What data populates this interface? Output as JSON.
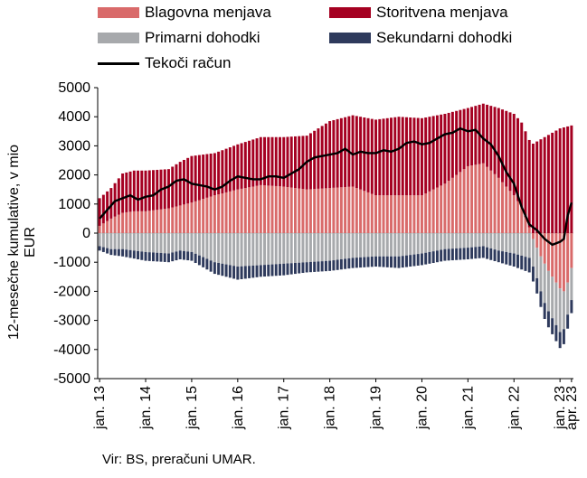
{
  "legend": {
    "goods": "Blagovna menjava",
    "services": "Storitvena menjava",
    "primary": "Primarni dohodki",
    "secondary": "Sekundarni dohodki",
    "current": "Tekoči račun"
  },
  "source": "Vir: BS, preračuni UMAR.",
  "colors": {
    "goods": "#d96a6a",
    "services": "#a50021",
    "primary": "#a7a9ac",
    "secondary": "#2e3a5c",
    "current": "#000000",
    "zero_line": "#c7c7c7"
  },
  "chart_data": {
    "type": "bar",
    "stacked": true,
    "ylabel": "12-mesečne kumulative, v mio EUR",
    "ylim": [
      -5000,
      5000
    ],
    "yticks": [
      5000,
      4000,
      3000,
      2000,
      1000,
      0,
      -1000,
      -2000,
      -3000,
      -4000,
      -5000
    ],
    "x_start": "jan. 13",
    "x_end": "apr. 23",
    "xtick_labels": [
      "jan. 13",
      "jan. 14",
      "jan. 15",
      "jan. 16",
      "jan. 17",
      "jan. 18",
      "jan. 19",
      "jan. 20",
      "jan. 21",
      "jan. 22",
      "jan. 23",
      "apr. 23"
    ],
    "xtick_index": [
      0,
      12,
      24,
      36,
      48,
      60,
      72,
      84,
      96,
      108,
      120,
      123
    ],
    "series_order": [
      "goods",
      "services",
      "primary",
      "secondary"
    ],
    "anchors": {
      "goods": [
        [
          0,
          250
        ],
        [
          3,
          500
        ],
        [
          6,
          700
        ],
        [
          9,
          750
        ],
        [
          12,
          750
        ],
        [
          18,
          850
        ],
        [
          21,
          950
        ],
        [
          24,
          1050
        ],
        [
          30,
          1300
        ],
        [
          36,
          1500
        ],
        [
          42,
          1650
        ],
        [
          48,
          1600
        ],
        [
          54,
          1500
        ],
        [
          60,
          1550
        ],
        [
          66,
          1600
        ],
        [
          72,
          1300
        ],
        [
          78,
          1300
        ],
        [
          84,
          1300
        ],
        [
          90,
          1700
        ],
        [
          96,
          2300
        ],
        [
          100,
          2400
        ],
        [
          104,
          1900
        ],
        [
          108,
          1300
        ],
        [
          110,
          900
        ],
        [
          112,
          200
        ],
        [
          113,
          -200
        ],
        [
          115,
          -800
        ],
        [
          117,
          -1300
        ],
        [
          119,
          -1700
        ],
        [
          120,
          -1900
        ],
        [
          121,
          -2000
        ],
        [
          122,
          -1700
        ],
        [
          123,
          -1200
        ]
      ],
      "services": [
        [
          0,
          950
        ],
        [
          3,
          1050
        ],
        [
          6,
          1350
        ],
        [
          9,
          1400
        ],
        [
          12,
          1400
        ],
        [
          18,
          1350
        ],
        [
          21,
          1500
        ],
        [
          24,
          1600
        ],
        [
          30,
          1450
        ],
        [
          36,
          1550
        ],
        [
          42,
          1650
        ],
        [
          48,
          1700
        ],
        [
          54,
          1850
        ],
        [
          60,
          2300
        ],
        [
          66,
          2450
        ],
        [
          72,
          2600
        ],
        [
          78,
          2700
        ],
        [
          84,
          2650
        ],
        [
          90,
          2400
        ],
        [
          96,
          2000
        ],
        [
          100,
          2050
        ],
        [
          104,
          2400
        ],
        [
          108,
          2800
        ],
        [
          112,
          3000
        ],
        [
          116,
          3300
        ],
        [
          120,
          3600
        ],
        [
          123,
          3700
        ]
      ],
      "primary": [
        [
          0,
          -450
        ],
        [
          3,
          -550
        ],
        [
          6,
          -550
        ],
        [
          9,
          -600
        ],
        [
          12,
          -650
        ],
        [
          18,
          -700
        ],
        [
          21,
          -600
        ],
        [
          24,
          -650
        ],
        [
          30,
          -1000
        ],
        [
          36,
          -1150
        ],
        [
          42,
          -1100
        ],
        [
          48,
          -1050
        ],
        [
          54,
          -1000
        ],
        [
          60,
          -950
        ],
        [
          66,
          -850
        ],
        [
          72,
          -800
        ],
        [
          78,
          -800
        ],
        [
          84,
          -700
        ],
        [
          90,
          -550
        ],
        [
          96,
          -500
        ],
        [
          100,
          -450
        ],
        [
          104,
          -600
        ],
        [
          108,
          -700
        ],
        [
          112,
          -850
        ],
        [
          114,
          -1050
        ],
        [
          116,
          -1350
        ],
        [
          120,
          -1500
        ],
        [
          122,
          -1100
        ],
        [
          123,
          -1100
        ]
      ],
      "secondary": [
        [
          0,
          -150
        ],
        [
          6,
          -250
        ],
        [
          12,
          -300
        ],
        [
          18,
          -300
        ],
        [
          24,
          -300
        ],
        [
          30,
          -400
        ],
        [
          36,
          -450
        ],
        [
          42,
          -400
        ],
        [
          48,
          -400
        ],
        [
          54,
          -350
        ],
        [
          60,
          -350
        ],
        [
          66,
          -350
        ],
        [
          72,
          -350
        ],
        [
          78,
          -400
        ],
        [
          84,
          -400
        ],
        [
          90,
          -400
        ],
        [
          96,
          -400
        ],
        [
          100,
          -400
        ],
        [
          104,
          -400
        ],
        [
          108,
          -450
        ],
        [
          112,
          -500
        ],
        [
          116,
          -550
        ],
        [
          120,
          -550
        ],
        [
          123,
          -450
        ]
      ],
      "current": [
        [
          0,
          500
        ],
        [
          2,
          800
        ],
        [
          4,
          1100
        ],
        [
          6,
          1200
        ],
        [
          8,
          1300
        ],
        [
          10,
          1150
        ],
        [
          12,
          1250
        ],
        [
          14,
          1300
        ],
        [
          16,
          1500
        ],
        [
          18,
          1600
        ],
        [
          20,
          1800
        ],
        [
          22,
          1850
        ],
        [
          24,
          1700
        ],
        [
          26,
          1650
        ],
        [
          28,
          1600
        ],
        [
          30,
          1500
        ],
        [
          32,
          1600
        ],
        [
          34,
          1800
        ],
        [
          36,
          1950
        ],
        [
          38,
          1900
        ],
        [
          40,
          1850
        ],
        [
          42,
          1850
        ],
        [
          44,
          1950
        ],
        [
          46,
          1950
        ],
        [
          48,
          1900
        ],
        [
          50,
          2050
        ],
        [
          52,
          2200
        ],
        [
          54,
          2450
        ],
        [
          56,
          2600
        ],
        [
          58,
          2650
        ],
        [
          60,
          2700
        ],
        [
          62,
          2750
        ],
        [
          64,
          2900
        ],
        [
          66,
          2700
        ],
        [
          68,
          2800
        ],
        [
          70,
          2750
        ],
        [
          72,
          2750
        ],
        [
          74,
          2850
        ],
        [
          76,
          2800
        ],
        [
          78,
          2900
        ],
        [
          80,
          3100
        ],
        [
          82,
          3150
        ],
        [
          84,
          3050
        ],
        [
          86,
          3100
        ],
        [
          88,
          3250
        ],
        [
          90,
          3400
        ],
        [
          92,
          3450
        ],
        [
          94,
          3600
        ],
        [
          96,
          3500
        ],
        [
          98,
          3550
        ],
        [
          100,
          3250
        ],
        [
          102,
          3050
        ],
        [
          104,
          2650
        ],
        [
          106,
          2100
        ],
        [
          108,
          1700
        ],
        [
          110,
          900
        ],
        [
          112,
          300
        ],
        [
          114,
          100
        ],
        [
          116,
          -200
        ],
        [
          118,
          -400
        ],
        [
          120,
          -300
        ],
        [
          121,
          -200
        ],
        [
          122,
          600
        ],
        [
          123,
          1050
        ]
      ]
    }
  }
}
